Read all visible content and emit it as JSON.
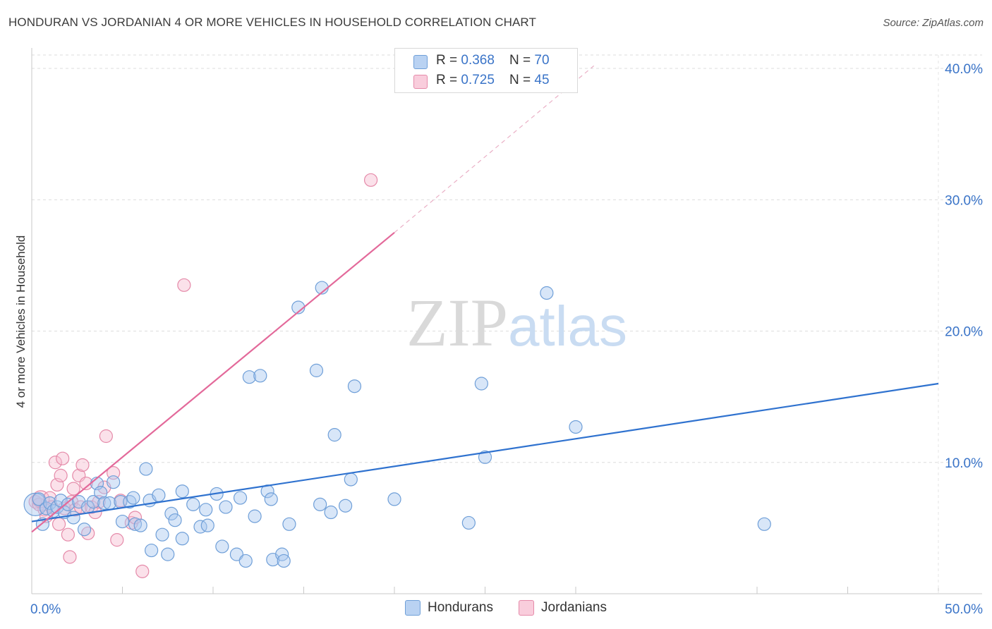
{
  "title": "HONDURAN VS JORDANIAN 4 OR MORE VEHICLES IN HOUSEHOLD CORRELATION CHART",
  "source": "Source: ZipAtlas.com",
  "watermark": {
    "zip": "ZIP",
    "atlas": "atlas"
  },
  "legend": {
    "hondurans": {
      "r_label": "R = ",
      "r_value": "0.368",
      "n_label": "N = ",
      "n_value": "70"
    },
    "jordanians": {
      "r_label": "R = ",
      "r_value": "0.725",
      "n_label": "N = ",
      "n_value": "45"
    }
  },
  "bottom_legend": {
    "hondurans": "Hondurans",
    "jordanians": "Jordanians"
  },
  "colors": {
    "blue_fill": "#a9c8f0",
    "blue_stroke": "#6f9fd8",
    "blue_line": "#2f72cf",
    "pink_fill": "#f7bcd0",
    "pink_stroke": "#e58aa9",
    "pink_line": "#e3699a",
    "axis_label": "#3a74c8",
    "grid": "#dcdcdc"
  },
  "chart_data": {
    "type": "scatter",
    "title": "HONDURAN VS JORDANIAN 4 OR MORE VEHICLES IN HOUSEHOLD CORRELATION CHART",
    "xlabel": "",
    "ylabel": "4 or more Vehicles in Household",
    "xlim": [
      0,
      50
    ],
    "ylim": [
      0,
      40
    ],
    "x_tick_labels": [
      "0.0%",
      "50.0%"
    ],
    "y_ticks": [
      10,
      20,
      30,
      40
    ],
    "y_tick_labels": [
      "10.0%",
      "20.0%",
      "30.0%",
      "40.0%"
    ],
    "x_minor_ticks": [
      0,
      5,
      10,
      15,
      20,
      25,
      30,
      40,
      45,
      50
    ],
    "series": [
      {
        "name": "Hondurans",
        "r": 0.368,
        "n": 70,
        "trend": {
          "x": [
            0,
            50
          ],
          "y": [
            5.5,
            16.0
          ]
        },
        "points": [
          {
            "x": 0.2,
            "y": 6.8,
            "s": 16
          },
          {
            "x": 0.4,
            "y": 7.2,
            "s": 9
          },
          {
            "x": 0.6,
            "y": 5.3,
            "s": 9
          },
          {
            "x": 0.8,
            "y": 6.5,
            "s": 9
          },
          {
            "x": 1.0,
            "y": 6.9,
            "s": 9
          },
          {
            "x": 1.2,
            "y": 6.3,
            "s": 9
          },
          {
            "x": 1.4,
            "y": 6.6,
            "s": 9
          },
          {
            "x": 1.6,
            "y": 7.1,
            "s": 9
          },
          {
            "x": 1.8,
            "y": 6.2,
            "s": 9
          },
          {
            "x": 2.0,
            "y": 6.8,
            "s": 9
          },
          {
            "x": 2.3,
            "y": 5.8,
            "s": 9
          },
          {
            "x": 2.6,
            "y": 7.0,
            "s": 9
          },
          {
            "x": 2.9,
            "y": 4.9,
            "s": 9
          },
          {
            "x": 3.1,
            "y": 6.6,
            "s": 9
          },
          {
            "x": 3.4,
            "y": 7.0,
            "s": 9
          },
          {
            "x": 3.6,
            "y": 8.4,
            "s": 9
          },
          {
            "x": 3.8,
            "y": 7.7,
            "s": 9
          },
          {
            "x": 4.0,
            "y": 6.9,
            "s": 9
          },
          {
            "x": 4.3,
            "y": 6.9,
            "s": 9
          },
          {
            "x": 4.5,
            "y": 8.5,
            "s": 9
          },
          {
            "x": 4.9,
            "y": 7.0,
            "s": 9
          },
          {
            "x": 5.0,
            "y": 5.5,
            "s": 9
          },
          {
            "x": 5.4,
            "y": 7.0,
            "s": 9
          },
          {
            "x": 5.6,
            "y": 7.3,
            "s": 9
          },
          {
            "x": 5.7,
            "y": 5.3,
            "s": 9
          },
          {
            "x": 6.0,
            "y": 5.2,
            "s": 9
          },
          {
            "x": 6.3,
            "y": 9.5,
            "s": 9
          },
          {
            "x": 6.5,
            "y": 7.1,
            "s": 9
          },
          {
            "x": 6.6,
            "y": 3.3,
            "s": 9
          },
          {
            "x": 7.0,
            "y": 7.5,
            "s": 9
          },
          {
            "x": 7.2,
            "y": 4.5,
            "s": 9
          },
          {
            "x": 7.5,
            "y": 3.0,
            "s": 9
          },
          {
            "x": 7.7,
            "y": 6.1,
            "s": 9
          },
          {
            "x": 7.9,
            "y": 5.6,
            "s": 9
          },
          {
            "x": 8.3,
            "y": 4.2,
            "s": 9
          },
          {
            "x": 8.3,
            "y": 7.8,
            "s": 9
          },
          {
            "x": 8.9,
            "y": 6.8,
            "s": 9
          },
          {
            "x": 9.3,
            "y": 5.1,
            "s": 9
          },
          {
            "x": 9.6,
            "y": 6.4,
            "s": 9
          },
          {
            "x": 9.7,
            "y": 5.2,
            "s": 9
          },
          {
            "x": 10.2,
            "y": 7.6,
            "s": 9
          },
          {
            "x": 10.5,
            "y": 3.6,
            "s": 9
          },
          {
            "x": 10.7,
            "y": 6.6,
            "s": 9
          },
          {
            "x": 11.3,
            "y": 3.0,
            "s": 9
          },
          {
            "x": 11.5,
            "y": 7.3,
            "s": 9
          },
          {
            "x": 11.8,
            "y": 2.5,
            "s": 9
          },
          {
            "x": 12.0,
            "y": 16.5,
            "s": 9
          },
          {
            "x": 12.3,
            "y": 5.9,
            "s": 9
          },
          {
            "x": 12.6,
            "y": 16.6,
            "s": 9
          },
          {
            "x": 13.0,
            "y": 7.8,
            "s": 9
          },
          {
            "x": 13.2,
            "y": 7.2,
            "s": 9
          },
          {
            "x": 13.3,
            "y": 2.6,
            "s": 9
          },
          {
            "x": 13.8,
            "y": 3.0,
            "s": 9
          },
          {
            "x": 13.9,
            "y": 2.5,
            "s": 9
          },
          {
            "x": 14.2,
            "y": 5.3,
            "s": 9
          },
          {
            "x": 14.7,
            "y": 21.8,
            "s": 9
          },
          {
            "x": 15.7,
            "y": 17.0,
            "s": 9
          },
          {
            "x": 15.9,
            "y": 6.8,
            "s": 9
          },
          {
            "x": 16.0,
            "y": 23.3,
            "s": 9
          },
          {
            "x": 16.5,
            "y": 6.2,
            "s": 9
          },
          {
            "x": 16.7,
            "y": 12.1,
            "s": 9
          },
          {
            "x": 17.3,
            "y": 6.7,
            "s": 9
          },
          {
            "x": 17.6,
            "y": 8.7,
            "s": 9
          },
          {
            "x": 17.8,
            "y": 15.8,
            "s": 9
          },
          {
            "x": 20.0,
            "y": 7.2,
            "s": 9
          },
          {
            "x": 24.1,
            "y": 5.4,
            "s": 9
          },
          {
            "x": 24.8,
            "y": 16.0,
            "s": 9
          },
          {
            "x": 25.0,
            "y": 10.4,
            "s": 9
          },
          {
            "x": 28.4,
            "y": 22.9,
            "s": 9
          },
          {
            "x": 30.0,
            "y": 12.7,
            "s": 9
          },
          {
            "x": 40.4,
            "y": 5.3,
            "s": 9
          }
        ]
      },
      {
        "name": "Jordanians",
        "r": 0.725,
        "n": 45,
        "trend": {
          "x": [
            0,
            20.0
          ],
          "y": [
            4.7,
            27.5
          ]
        },
        "trend_extension": {
          "x": [
            20.0,
            31.0
          ],
          "y": [
            27.5,
            40.2
          ]
        },
        "points": [
          {
            "x": 0.2,
            "y": 7.0,
            "s": 9
          },
          {
            "x": 0.4,
            "y": 6.8,
            "s": 9
          },
          {
            "x": 0.5,
            "y": 7.2,
            "s": 12
          },
          {
            "x": 0.7,
            "y": 6.4,
            "s": 9
          },
          {
            "x": 0.8,
            "y": 5.9,
            "s": 9
          },
          {
            "x": 1.0,
            "y": 7.3,
            "s": 9
          },
          {
            "x": 1.1,
            "y": 6.6,
            "s": 9
          },
          {
            "x": 1.3,
            "y": 10.0,
            "s": 9
          },
          {
            "x": 1.4,
            "y": 8.3,
            "s": 9
          },
          {
            "x": 1.5,
            "y": 5.3,
            "s": 9
          },
          {
            "x": 1.6,
            "y": 9.0,
            "s": 9
          },
          {
            "x": 1.7,
            "y": 10.3,
            "s": 9
          },
          {
            "x": 1.8,
            "y": 6.5,
            "s": 9
          },
          {
            "x": 2.0,
            "y": 4.5,
            "s": 9
          },
          {
            "x": 2.1,
            "y": 2.8,
            "s": 9
          },
          {
            "x": 2.2,
            "y": 7.0,
            "s": 9
          },
          {
            "x": 2.3,
            "y": 8.0,
            "s": 9
          },
          {
            "x": 2.4,
            "y": 6.4,
            "s": 9
          },
          {
            "x": 2.6,
            "y": 9.0,
            "s": 9
          },
          {
            "x": 2.7,
            "y": 6.6,
            "s": 9
          },
          {
            "x": 2.8,
            "y": 9.8,
            "s": 9
          },
          {
            "x": 3.0,
            "y": 8.4,
            "s": 9
          },
          {
            "x": 3.1,
            "y": 4.6,
            "s": 9
          },
          {
            "x": 3.3,
            "y": 6.6,
            "s": 9
          },
          {
            "x": 3.5,
            "y": 6.2,
            "s": 9
          },
          {
            "x": 3.7,
            "y": 7.0,
            "s": 9
          },
          {
            "x": 4.0,
            "y": 8.1,
            "s": 9
          },
          {
            "x": 4.1,
            "y": 12.0,
            "s": 9
          },
          {
            "x": 4.5,
            "y": 9.2,
            "s": 9
          },
          {
            "x": 4.7,
            "y": 4.1,
            "s": 9
          },
          {
            "x": 4.9,
            "y": 7.1,
            "s": 9
          },
          {
            "x": 5.5,
            "y": 5.4,
            "s": 9
          },
          {
            "x": 5.7,
            "y": 5.8,
            "s": 9
          },
          {
            "x": 6.1,
            "y": 1.7,
            "s": 9
          },
          {
            "x": 8.4,
            "y": 23.5,
            "s": 9
          },
          {
            "x": 18.7,
            "y": 31.5,
            "s": 9
          }
        ]
      }
    ]
  }
}
